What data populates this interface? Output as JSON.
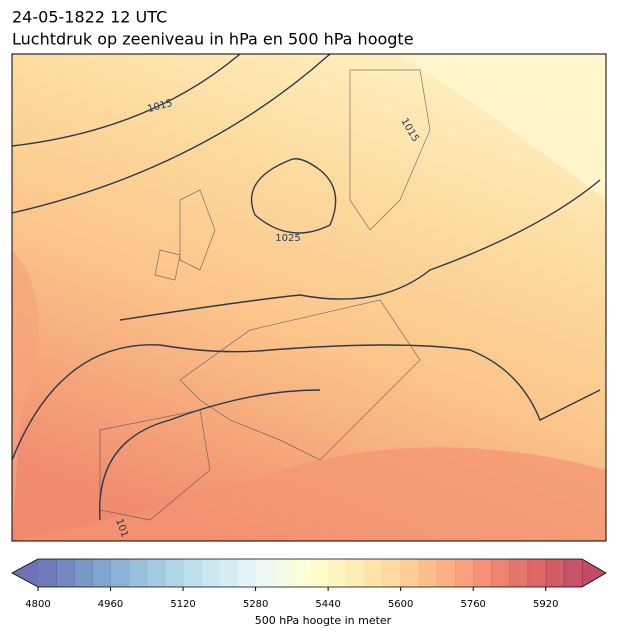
{
  "header": {
    "title": "24-05-1822 12 UTC",
    "subtitle": "Luchtdruk op zeeniveau in hPa en 500 hPa hoogte"
  },
  "contour_labels": [
    "1015",
    "1025",
    "1015",
    "101"
  ],
  "colorbar": {
    "label": "500 hPa hoogte in meter",
    "lim": [
      4800,
      6000
    ],
    "step": 40,
    "ticks": [
      4800,
      4960,
      5120,
      5280,
      5440,
      5600,
      5760,
      5920
    ],
    "colors": [
      "#313695",
      "#4575b4",
      "#74add1",
      "#abd9e9",
      "#e0f3f8",
      "#ffffbf",
      "#fee090",
      "#fdae61",
      "#f46d43",
      "#d73027",
      "#a50026"
    ],
    "alpha": 0.7
  }
}
